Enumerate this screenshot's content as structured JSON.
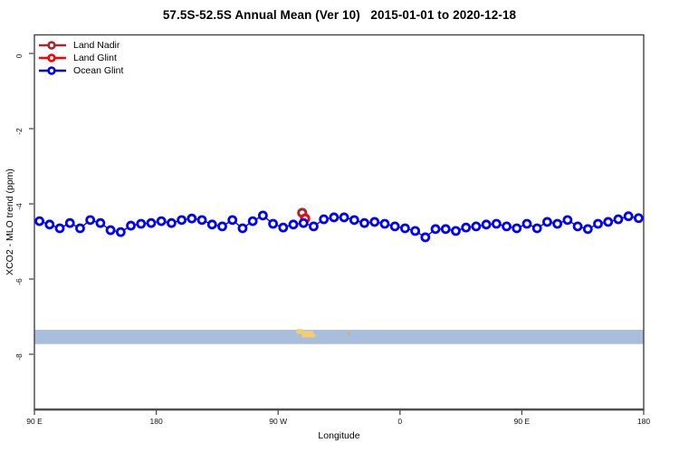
{
  "title": "57.5S-52.5S Annual Mean (Ver 10)   2015-01-01 to 2020-12-18",
  "legend": {
    "items": [
      {
        "label": "Land Nadir",
        "color": "#a52a2a"
      },
      {
        "label": "Land Glint",
        "color": "#ff0000"
      },
      {
        "label": "Ocean Glint",
        "color": "#0000ff"
      }
    ]
  },
  "chart_data": {
    "type": "line",
    "title": "57.5S-52.5S Annual Mean (Ver 10)   2015-01-01 to 2020-12-18",
    "xlabel": "Longitude",
    "ylabel": "XCO2 - MLO trend (ppm)",
    "x_axis_span_deg": 450,
    "x_ticks": [
      {
        "deg": 0,
        "label": "90 E"
      },
      {
        "deg": 90,
        "label": "180"
      },
      {
        "deg": 180,
        "label": "90 W"
      },
      {
        "deg": 270,
        "label": "0"
      },
      {
        "deg": 360,
        "label": "90 E"
      },
      {
        "deg": 450,
        "label": "180"
      }
    ],
    "y_ticks": [
      {
        "value": 0,
        "label": "0"
      },
      {
        "value": -2,
        "label": "-2"
      },
      {
        "value": -4,
        "label": "-4"
      },
      {
        "value": -6,
        "label": "-6"
      },
      {
        "value": -8,
        "label": "-8"
      }
    ],
    "ylim": [
      0.5,
      -9.5
    ],
    "grid": false,
    "legend_position": "top-left-inside",
    "series": [
      {
        "name": "Land Nadir",
        "color": "#a52a2a",
        "marker": "open-circle",
        "points": [
          {
            "x_deg": 197.8,
            "y": -4.24
          }
        ]
      },
      {
        "name": "Land Glint",
        "color": "#ff0000",
        "marker": "open-circle",
        "points": [
          {
            "x_deg": 200.0,
            "y": -4.39
          }
        ]
      },
      {
        "name": "Ocean Glint",
        "color": "#0000ff",
        "marker": "open-circle",
        "x_start_deg": 3.75,
        "x_step_deg": 7.5,
        "values": [
          -4.46,
          -4.55,
          -4.65,
          -4.51,
          -4.65,
          -4.43,
          -4.51,
          -4.7,
          -4.75,
          -4.58,
          -4.53,
          -4.51,
          -4.46,
          -4.51,
          -4.43,
          -4.39,
          -4.43,
          -4.55,
          -4.6,
          -4.43,
          -4.65,
          -4.46,
          -4.31,
          -4.53,
          -4.63,
          -4.55,
          -4.51,
          -4.6,
          -4.41,
          -4.36,
          -4.36,
          -4.43,
          -4.51,
          -4.48,
          -4.53,
          -4.6,
          -4.65,
          -4.72,
          -4.89,
          -4.67,
          -4.67,
          -4.72,
          -4.63,
          -4.6,
          -4.55,
          -4.53,
          -4.6,
          -4.65,
          -4.53,
          -4.65,
          -4.48,
          -4.53,
          -4.43,
          -4.6,
          -4.67,
          -4.53,
          -4.48,
          -4.41,
          -4.33,
          -4.38
        ]
      }
    ],
    "map_strip": {
      "description": "latitude-band strip: ocean shading with small land patches",
      "ocean_color": "#a9bedd",
      "v_top": -7.35,
      "v_bottom": -7.73,
      "land_color": "#f2cf6b",
      "land_patches": [
        {
          "x_deg": 193.5,
          "w_deg": 5.0,
          "v_top": -7.33,
          "v_h": 0.13,
          "color": "#f2cf6b"
        },
        {
          "x_deg": 197.5,
          "w_deg": 8.5,
          "v_top": -7.38,
          "v_h": 0.17,
          "color": "#f2cf6b"
        },
        {
          "x_deg": 204.5,
          "w_deg": 3.0,
          "v_top": -7.45,
          "v_h": 0.1,
          "color": "#f2cf6b"
        },
        {
          "x_deg": 231.5,
          "w_deg": 1.6,
          "v_top": -7.42,
          "v_h": 0.08,
          "color": "#eda53f"
        }
      ]
    }
  }
}
